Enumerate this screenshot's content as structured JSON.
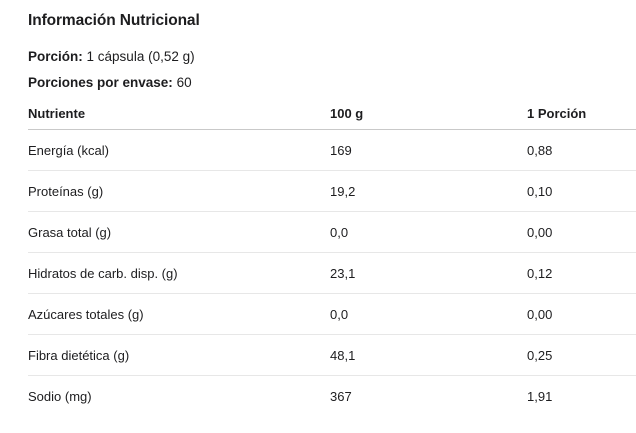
{
  "header": {
    "title": "Información Nutricional",
    "serving_label": "Porción:",
    "serving_value": "1 cápsula (0,52 g)",
    "servings_per_container_label": "Porciones por envase:",
    "servings_per_container_value": "60"
  },
  "table": {
    "columns": [
      "Nutriente",
      "100 g",
      "1 Porción"
    ],
    "rows": [
      [
        "Energía (kcal)",
        "169",
        "0,88"
      ],
      [
        "Proteínas (g)",
        "19,2",
        "0,10"
      ],
      [
        "Grasa total (g)",
        "0,0",
        "0,00"
      ],
      [
        "Hidratos de carb. disp. (g)",
        "23,1",
        "0,12"
      ],
      [
        "Azúcares totales (g)",
        "0,0",
        "0,00"
      ],
      [
        "Fibra dietética (g)",
        "48,1",
        "0,25"
      ],
      [
        "Sodio (mg)",
        "367",
        "1,91"
      ]
    ]
  },
  "colors": {
    "background": "#ffffff",
    "text": "#1d1d1f",
    "header_border": "#c9c9c9",
    "row_border": "#e7e7e7"
  }
}
